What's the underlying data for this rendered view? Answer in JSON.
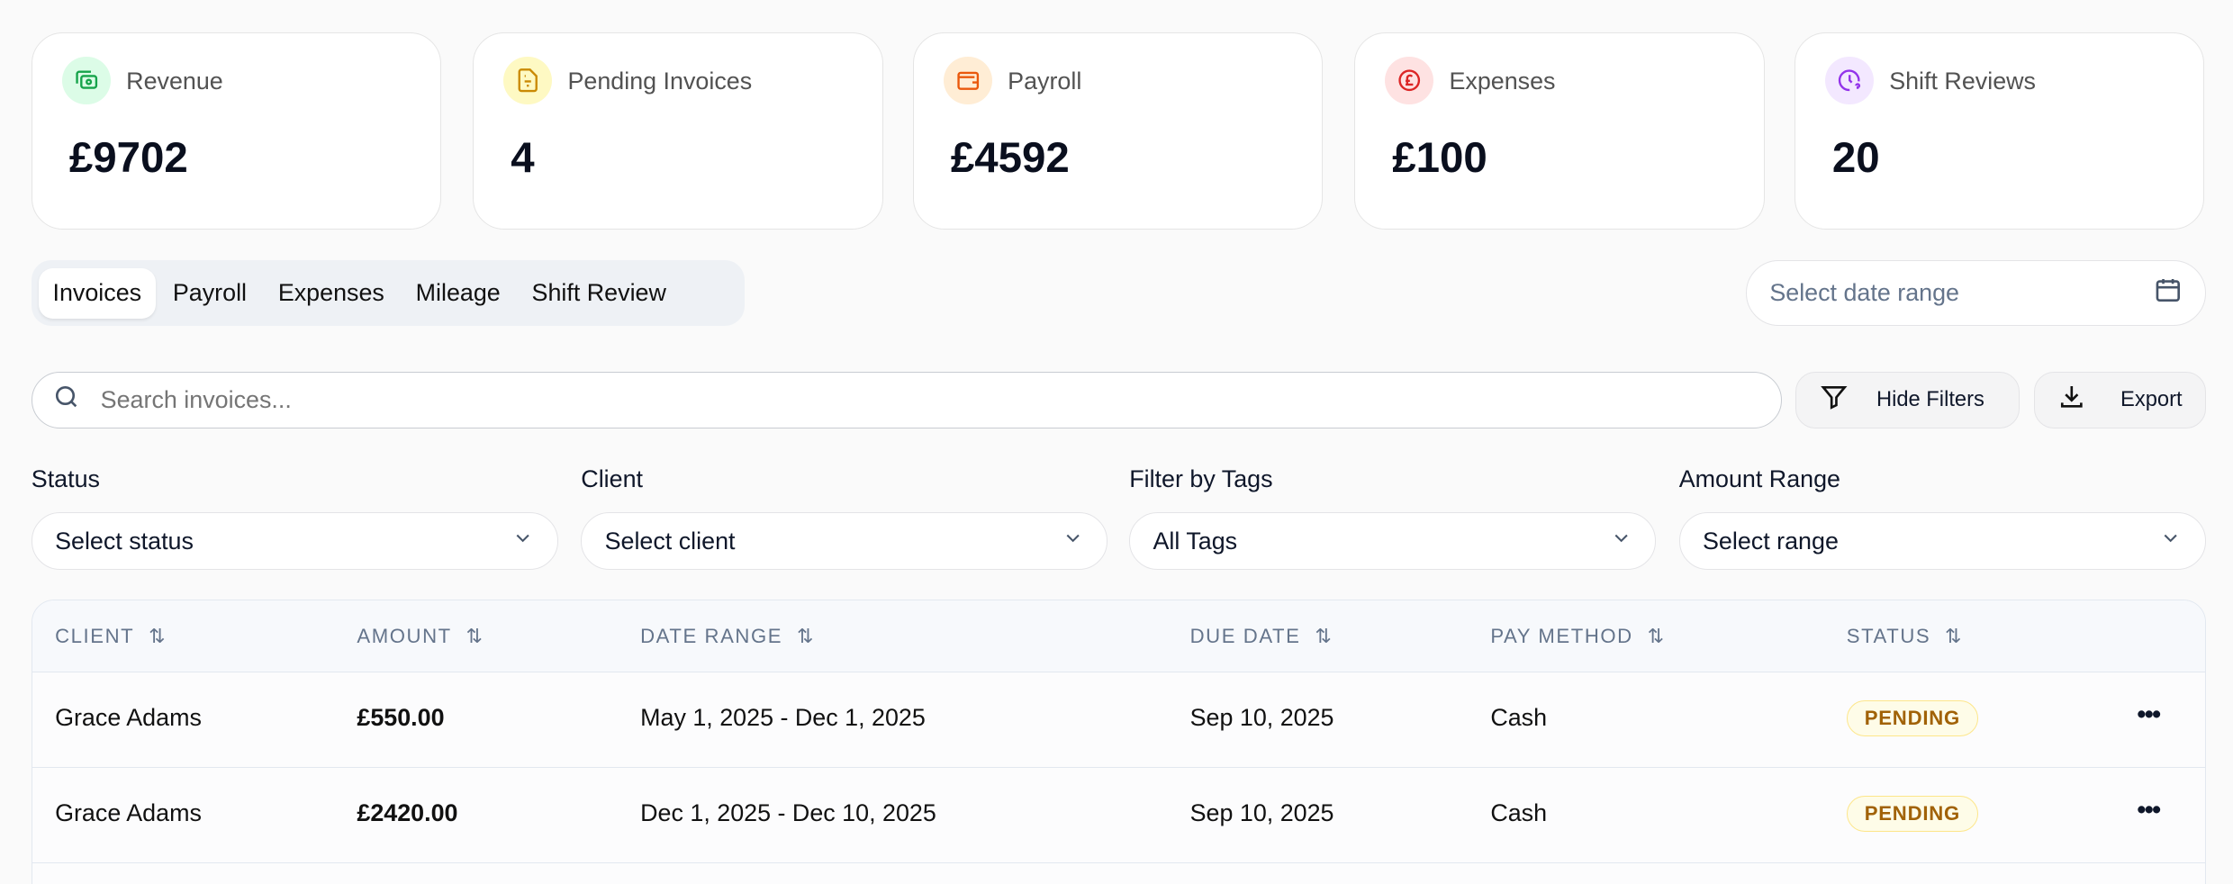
{
  "stats": [
    {
      "label": "Revenue",
      "value": "£9702",
      "icon": "banknote-icon",
      "color": "#16a34a",
      "bg": "#dcfce7"
    },
    {
      "label": "Pending Invoices",
      "value": "4",
      "icon": "file-invoice-icon",
      "color": "#ca8a04",
      "bg": "#fef9c3"
    },
    {
      "label": "Payroll",
      "value": "£4592",
      "icon": "wallet-icon",
      "color": "#ea580c",
      "bg": "#ffedd5"
    },
    {
      "label": "Expenses",
      "value": "£100",
      "icon": "pound-circle-icon",
      "color": "#dc2626",
      "bg": "#fee2e2"
    },
    {
      "label": "Shift Reviews",
      "value": "20",
      "icon": "clock-question-icon",
      "color": "#9333ea",
      "bg": "#f3e8ff"
    }
  ],
  "tabs": [
    "Invoices",
    "Payroll",
    "Expenses",
    "Mileage",
    "Shift Review"
  ],
  "active_tab": "Invoices",
  "date_range": {
    "placeholder": "Select date range"
  },
  "search": {
    "placeholder": "Search invoices...",
    "value": ""
  },
  "buttons": {
    "hide_filters": "Hide Filters",
    "export": "Export"
  },
  "filters": [
    {
      "label": "Status",
      "value": "Select status"
    },
    {
      "label": "Client",
      "value": "Select client"
    },
    {
      "label": "Filter by Tags",
      "value": "All Tags"
    },
    {
      "label": "Amount Range",
      "value": "Select range"
    }
  ],
  "table": {
    "columns": [
      "CLIENT",
      "AMOUNT",
      "DATE RANGE",
      "DUE DATE",
      "PAY METHOD",
      "STATUS"
    ],
    "rows": [
      {
        "client": "Grace Adams",
        "amount": "£550.00",
        "date_range": "May 1, 2025 - Dec 1, 2025",
        "due_date": "Sep 10, 2025",
        "pay_method": "Cash",
        "status": "PENDING"
      },
      {
        "client": "Grace Adams",
        "amount": "£2420.00",
        "date_range": "Dec 1, 2025 - Dec 10, 2025",
        "due_date": "Sep 10, 2025",
        "pay_method": "Cash",
        "status": "PENDING"
      }
    ]
  }
}
